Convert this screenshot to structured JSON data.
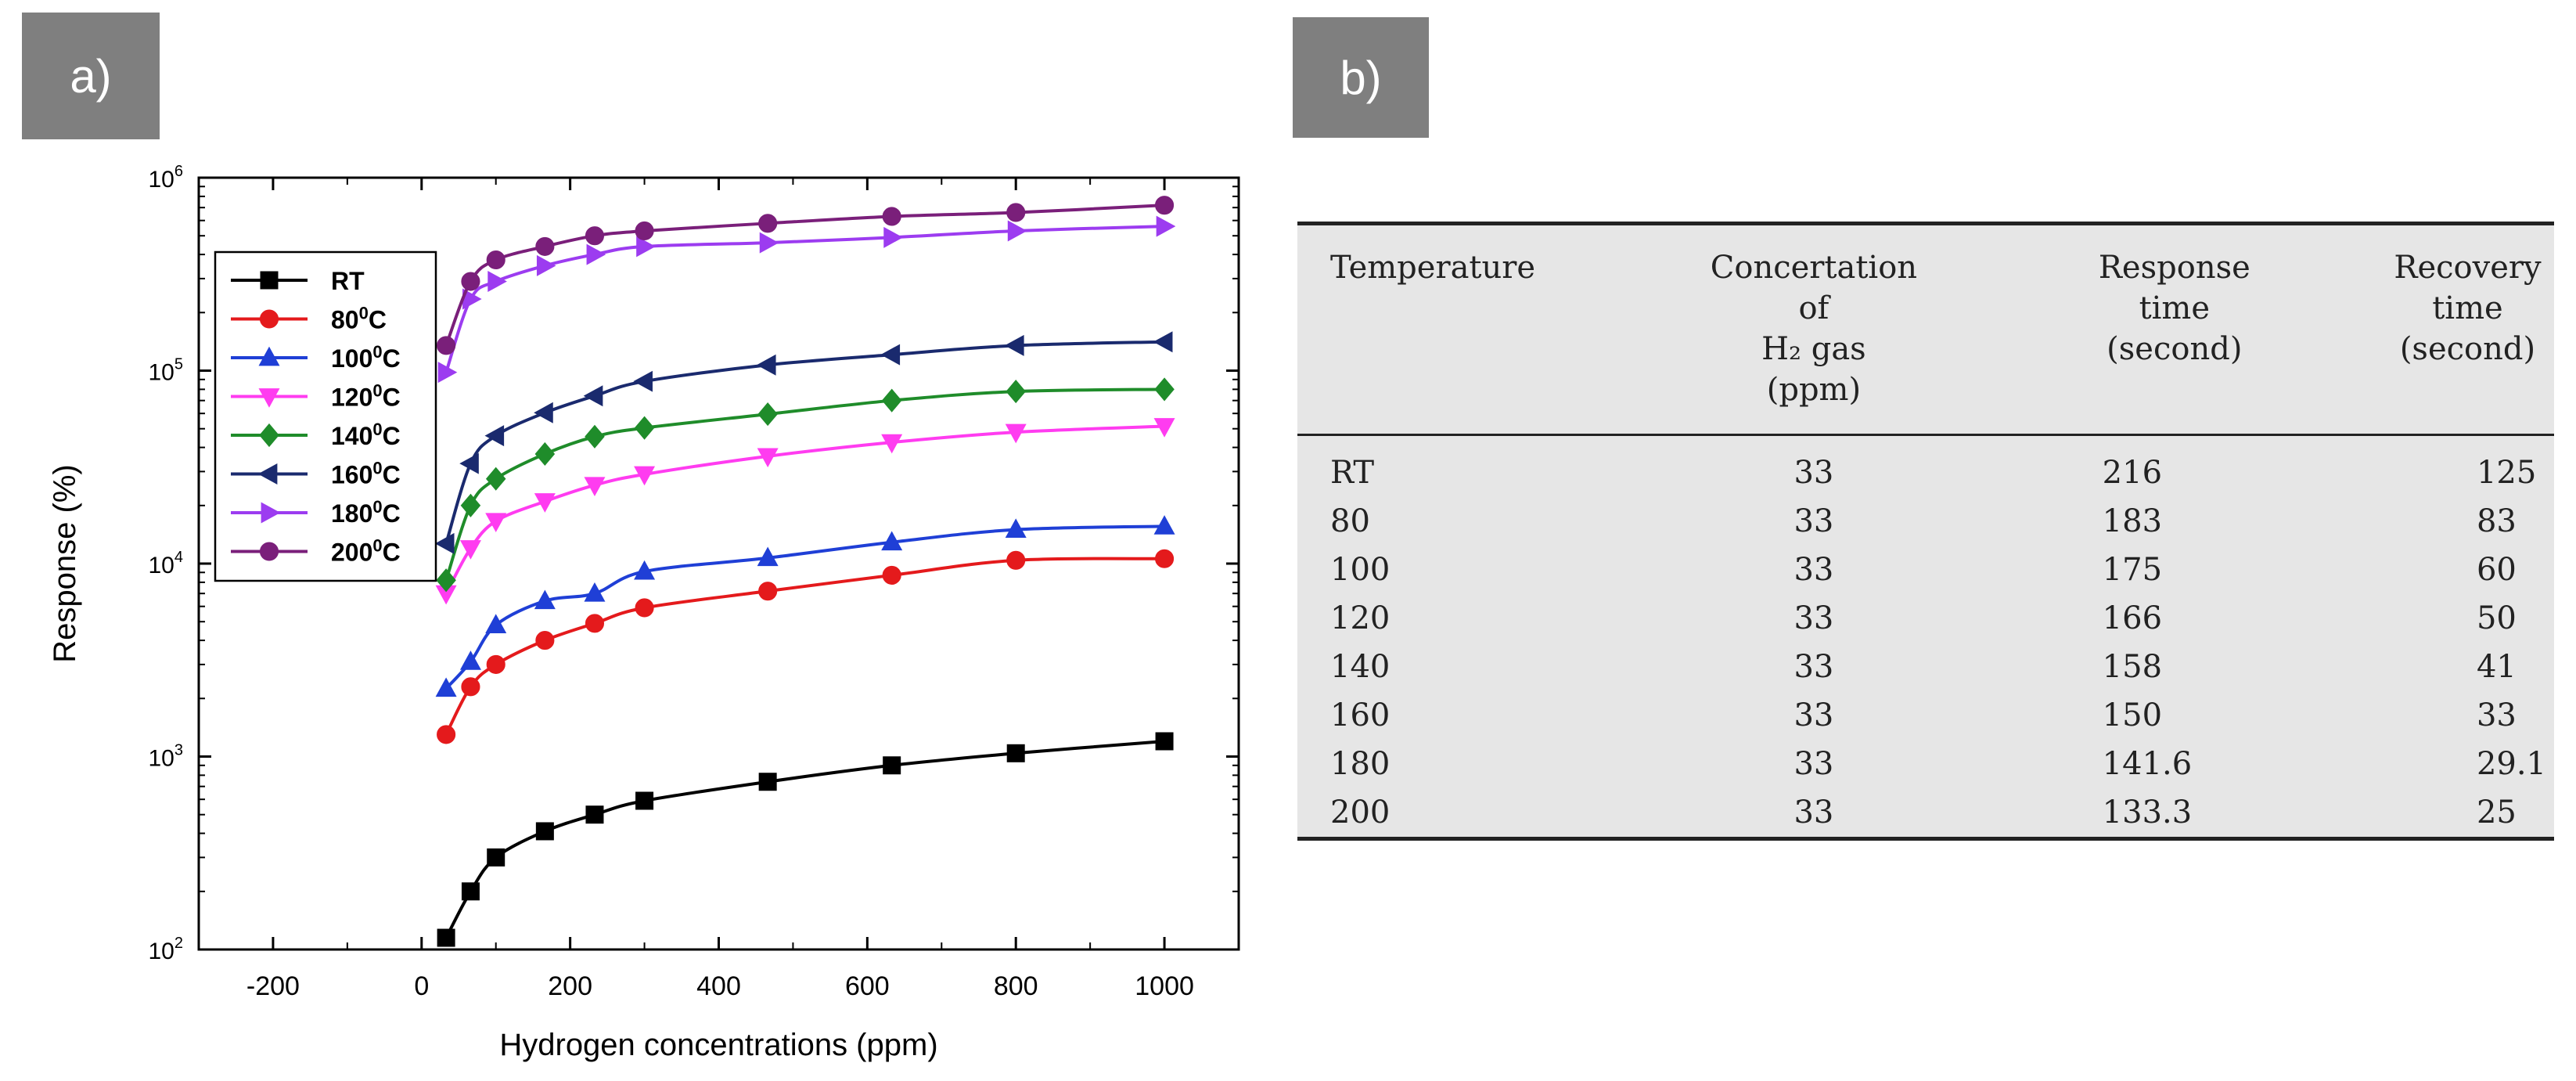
{
  "panel_a": {
    "label": "a)"
  },
  "panel_b": {
    "label": "b)"
  },
  "chart_data": {
    "type": "line",
    "y_scale": "log",
    "xlabel": "Hydrogen concentrations (ppm)",
    "ylabel": "Response  (%)",
    "xlim": [
      -300,
      1100
    ],
    "ylim": [
      100,
      1000000
    ],
    "x_ticks": [
      -200,
      0,
      200,
      400,
      600,
      800,
      1000
    ],
    "x_tick_labels": [
      "-200",
      "0",
      "200",
      "400",
      "600",
      "800",
      "1000"
    ],
    "y_ticks": [
      100,
      1000,
      10000,
      100000,
      1000000
    ],
    "y_tick_bases": [
      "10",
      "10",
      "10",
      "10",
      "10"
    ],
    "y_tick_exponents": [
      "2",
      "3",
      "4",
      "5",
      "6"
    ],
    "legend_position": "top-left",
    "x": [
      33,
      66,
      100,
      166,
      233,
      300,
      466,
      633,
      800,
      1000
    ],
    "series": [
      {
        "name": "RT",
        "name_prefix": "RT",
        "name_sup": "",
        "name_suffix": "",
        "color": "#000000",
        "marker": "square",
        "values": [
          115,
          200,
          300,
          410,
          500,
          590,
          740,
          900,
          1040,
          1200
        ]
      },
      {
        "name": "80°C",
        "name_prefix": "80",
        "name_sup": "0",
        "name_suffix": "C",
        "color": "#e41a1c",
        "marker": "circle",
        "values": [
          1300,
          2300,
          3000,
          4000,
          4900,
          5900,
          7200,
          8700,
          10400,
          10600
        ]
      },
      {
        "name": "100°C",
        "name_prefix": "100",
        "name_sup": "0",
        "name_suffix": "C",
        "color": "#1f3fd6",
        "marker": "triangle-up",
        "values": [
          2250,
          3100,
          4800,
          6400,
          7000,
          9100,
          10700,
          12900,
          15000,
          15600
        ]
      },
      {
        "name": "120°C",
        "name_prefix": "120",
        "name_sup": "0",
        "name_suffix": "C",
        "color": "#ff3cf0",
        "marker": "triangle-down",
        "values": [
          7000,
          12000,
          16600,
          21000,
          25500,
          29000,
          36000,
          42500,
          48000,
          51500
        ]
      },
      {
        "name": "140°C",
        "name_prefix": "140",
        "name_sup": "0",
        "name_suffix": "C",
        "color": "#1f8c2a",
        "marker": "diamond",
        "values": [
          8200,
          20000,
          27500,
          37000,
          45500,
          50500,
          59500,
          70000,
          78000,
          80000
        ]
      },
      {
        "name": "160°C",
        "name_prefix": "160",
        "name_sup": "0",
        "name_suffix": "C",
        "color": "#1a2a6e",
        "marker": "triangle-left",
        "values": [
          12700,
          33000,
          46000,
          60500,
          74000,
          88000,
          107000,
          121000,
          135000,
          141000
        ]
      },
      {
        "name": "180°C",
        "name_prefix": "180",
        "name_sup": "0",
        "name_suffix": "C",
        "color": "#9c3cf0",
        "marker": "triangle-right",
        "values": [
          98000,
          235000,
          290000,
          350000,
          400000,
          440000,
          460000,
          490000,
          530000,
          560000
        ]
      },
      {
        "name": "200°C",
        "name_prefix": "200",
        "name_sup": "0",
        "name_suffix": "C",
        "color": "#7a1f7a",
        "marker": "circle",
        "values": [
          135000,
          290000,
          375000,
          440000,
          500000,
          530000,
          580000,
          630000,
          660000,
          720000
        ]
      }
    ]
  },
  "table": {
    "headers": [
      [
        "Temperature"
      ],
      [
        "Concertation",
        "of",
        "H₂ gas",
        "(ppm)"
      ],
      [
        "Response",
        "time",
        "(second)"
      ],
      [
        "Recovery",
        "time",
        "(second)"
      ]
    ],
    "rows": [
      [
        "RT",
        "33",
        "216",
        "125"
      ],
      [
        "80",
        "33",
        "183",
        "83"
      ],
      [
        "100",
        "33",
        "175",
        "60"
      ],
      [
        "120",
        "33",
        "166",
        "50"
      ],
      [
        "140",
        "33",
        "158",
        "41"
      ],
      [
        "160",
        "33",
        "150",
        "33"
      ],
      [
        "180",
        "33",
        "141.6",
        "29.1"
      ],
      [
        "200",
        "33",
        "133.3",
        "25"
      ]
    ]
  }
}
